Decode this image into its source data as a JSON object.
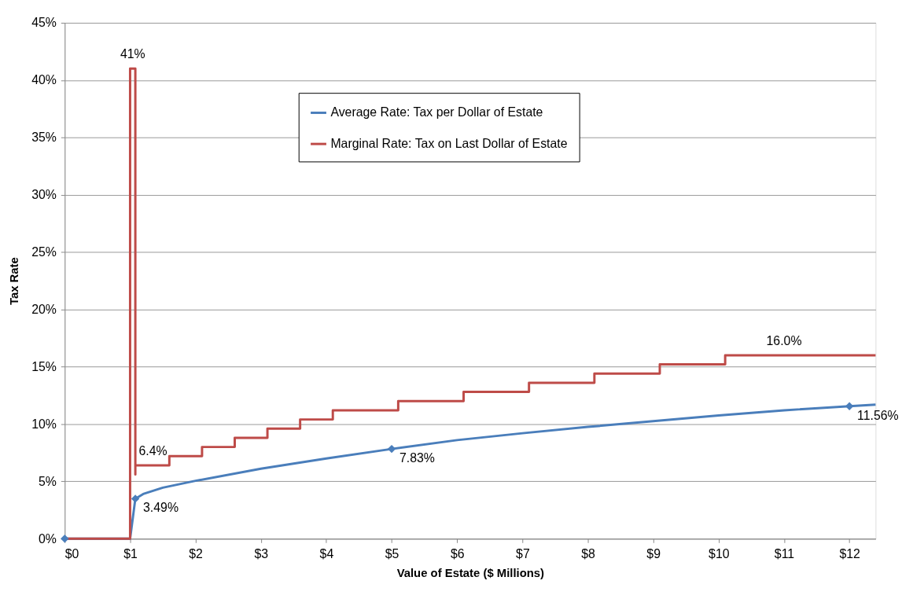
{
  "chart_data": {
    "type": "line",
    "xlabel": "Value of  Estate ($ Millions)",
    "ylabel": "Tax Rate",
    "xlim": [
      0,
      12.4
    ],
    "ylim": [
      0,
      45
    ],
    "xticks": [
      {
        "value": 0,
        "label": "$0"
      },
      {
        "value": 1,
        "label": "$1"
      },
      {
        "value": 2,
        "label": "$2"
      },
      {
        "value": 3,
        "label": "$3"
      },
      {
        "value": 4,
        "label": "$4"
      },
      {
        "value": 5,
        "label": "$5"
      },
      {
        "value": 6,
        "label": "$6"
      },
      {
        "value": 7,
        "label": "$7"
      },
      {
        "value": 8,
        "label": "$8"
      },
      {
        "value": 9,
        "label": "$9"
      },
      {
        "value": 10,
        "label": "$10"
      },
      {
        "value": 11,
        "label": "$11"
      },
      {
        "value": 12,
        "label": "$12"
      }
    ],
    "yticks": [
      {
        "value": 0,
        "label": "0%"
      },
      {
        "value": 5,
        "label": "5%"
      },
      {
        "value": 10,
        "label": "10%"
      },
      {
        "value": 15,
        "label": "15%"
      },
      {
        "value": 20,
        "label": "20%"
      },
      {
        "value": 25,
        "label": "25%"
      },
      {
        "value": 30,
        "label": "30%"
      },
      {
        "value": 35,
        "label": "35%"
      },
      {
        "value": 40,
        "label": "40%"
      },
      {
        "value": 45,
        "label": "45%"
      }
    ],
    "grid": "y",
    "legend": "top",
    "line_style": "solid",
    "series": [
      {
        "type": "line",
        "name": "Average Rate: Tax per Dollar of Estate",
        "color": "#4a7ebb",
        "marker": "none",
        "x": [
          0,
          1,
          1.08,
          1.2,
          1.5,
          2,
          3,
          4,
          5,
          6,
          7,
          8,
          9,
          10,
          11,
          12,
          12.4
        ],
        "values": [
          0,
          0,
          3.49,
          3.9,
          4.45,
          5.05,
          6.1,
          7.0,
          7.83,
          8.6,
          9.2,
          9.75,
          10.25,
          10.75,
          11.2,
          11.56,
          11.7
        ]
      },
      {
        "type": "line",
        "name": "Marginal Rate: Tax on Last Dollar of Estate",
        "color": "#be4b48",
        "marker": "none",
        "x": [
          0,
          1,
          1,
          1.08,
          1.08,
          1.08,
          1.6,
          1.6,
          2.1,
          2.1,
          2.6,
          2.6,
          3.1,
          3.1,
          3.6,
          3.6,
          4.1,
          4.1,
          5.1,
          5.1,
          6.1,
          6.1,
          7.1,
          7.1,
          8.1,
          8.1,
          9.1,
          9.1,
          10.1,
          10.1,
          12.4
        ],
        "values": [
          0,
          0,
          41,
          41,
          5.6,
          6.4,
          6.4,
          7.2,
          7.2,
          8.0,
          8.0,
          8.8,
          8.8,
          9.6,
          9.6,
          10.4,
          10.4,
          11.2,
          11.2,
          12.0,
          12.0,
          12.8,
          12.8,
          13.6,
          13.6,
          14.4,
          14.4,
          15.2,
          15.2,
          16.0,
          16.0
        ]
      },
      {
        "type": "scatter",
        "color": "#4a7ebb",
        "marker": "diamond",
        "x": [
          0,
          1.08,
          5,
          12
        ],
        "values": [
          0,
          3.49,
          7.83,
          11.56
        ],
        "value_labels": [
          null,
          "3.49%",
          "7.83%",
          "11.56%"
        ]
      }
    ],
    "annotations": [
      {
        "text": "41%",
        "x": 1.04,
        "y": 41
      },
      {
        "text": "6.4%",
        "x": 1.35,
        "y": 6.4
      },
      {
        "text": "16.0%",
        "x": 11,
        "y": 16.0
      }
    ]
  }
}
